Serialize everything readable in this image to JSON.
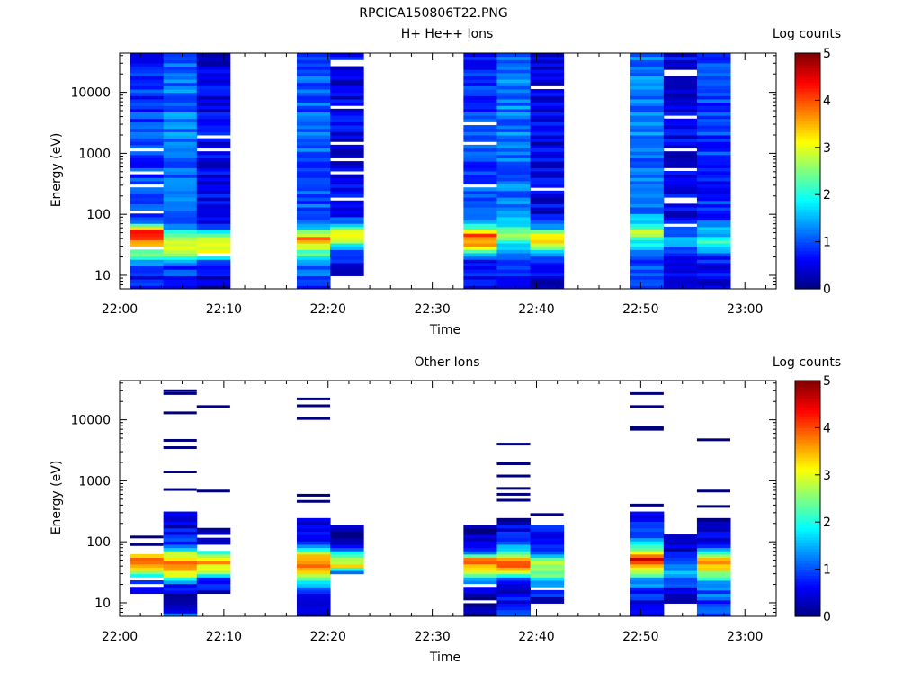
{
  "file_title": "RPCICA150806T22.PNG",
  "colors": {
    "colormap": [
      "#00007f",
      "#0000ff",
      "#007fff",
      "#00ffff",
      "#7fff7f",
      "#ffff00",
      "#ff7f00",
      "#ff0000",
      "#7f0000"
    ],
    "axis": "#000000",
    "background": "#ffffff"
  },
  "chart_data": [
    {
      "type": "heatmap",
      "title": "H+ He++ Ions",
      "xlabel": "Time",
      "ylabel": "Energy (eV)",
      "colorbar_label": "Log counts",
      "colorbar_range": [
        0,
        5
      ],
      "colorbar_ticks": [
        "0",
        "1",
        "2",
        "3",
        "4",
        "5"
      ],
      "x_range_min": [
        0,
        63
      ],
      "y_range_eV": [
        6,
        44000
      ],
      "y_scale": "log",
      "x_ticks": [
        {
          "min": 0,
          "label": "22:00"
        },
        {
          "min": 10,
          "label": "22:10"
        },
        {
          "min": 20,
          "label": "22:20"
        },
        {
          "min": 30,
          "label": "22:30"
        },
        {
          "min": 40,
          "label": "22:40"
        },
        {
          "min": 50,
          "label": "22:50"
        },
        {
          "min": 60,
          "label": "23:00"
        }
      ],
      "y_ticks": [
        {
          "v": 10,
          "label": "10"
        },
        {
          "v": 100,
          "label": "100"
        },
        {
          "v": 1000,
          "label": "1000"
        },
        {
          "v": 10000,
          "label": "10000"
        }
      ],
      "columns": [
        {
          "t0": 1.0,
          "t1": 4.2,
          "emin": 6,
          "emax": 44000,
          "profile": [
            [
              6,
              1.0
            ],
            [
              12,
              0.5
            ],
            [
              25,
              2.5
            ],
            [
              40,
              4.0
            ],
            [
              55,
              4.0
            ],
            [
              80,
              1.0
            ],
            [
              44000,
              0.8
            ]
          ],
          "gaps": [
            28,
            115,
            300,
            500,
            1200
          ]
        },
        {
          "t0": 4.2,
          "t1": 7.4,
          "emin": 6,
          "emax": 44000,
          "profile": [
            [
              6,
              0.8
            ],
            [
              15,
              0.9
            ],
            [
              25,
              2.8
            ],
            [
              40,
              2.8
            ],
            [
              60,
              1.2
            ],
            [
              44000,
              1.2
            ]
          ],
          "gaps": []
        },
        {
          "t0": 7.4,
          "t1": 10.6,
          "emin": 6,
          "emax": 44000,
          "profile": [
            [
              6,
              0.2
            ],
            [
              15,
              0.6
            ],
            [
              25,
              3.0
            ],
            [
              40,
              3.3
            ],
            [
              60,
              0.6
            ],
            [
              44000,
              0.5
            ]
          ],
          "gaps": [
            22,
            1100,
            1800
          ]
        },
        {
          "t0": 17.0,
          "t1": 20.2,
          "emin": 6,
          "emax": 44000,
          "profile": [
            [
              6,
              0.8
            ],
            [
              15,
              1.2
            ],
            [
              25,
              2.5
            ],
            [
              40,
              3.8
            ],
            [
              55,
              2.0
            ],
            [
              90,
              1.0
            ],
            [
              44000,
              1.1
            ]
          ],
          "gaps": []
        },
        {
          "t0": 20.2,
          "t1": 23.4,
          "emin": 10,
          "emax": 40000,
          "profile": [
            [
              10,
              0.4
            ],
            [
              25,
              0.8
            ],
            [
              35,
              2.5
            ],
            [
              45,
              3.5
            ],
            [
              60,
              2.0
            ],
            [
              100,
              0.5
            ],
            [
              40000,
              0.5
            ]
          ],
          "gaps": [
            180,
            500,
            800,
            1500,
            6000,
            30000
          ]
        },
        {
          "t0": 33.0,
          "t1": 36.2,
          "emin": 6,
          "emax": 44000,
          "profile": [
            [
              6,
              0.5
            ],
            [
              20,
              0.8
            ],
            [
              30,
              3.5
            ],
            [
              45,
              4.0
            ],
            [
              60,
              2.0
            ],
            [
              100,
              1.0
            ],
            [
              44000,
              0.8
            ]
          ],
          "gaps": [
            300,
            1400,
            3000
          ]
        },
        {
          "t0": 36.2,
          "t1": 39.4,
          "emin": 6,
          "emax": 44000,
          "profile": [
            [
              6,
              0.5
            ],
            [
              20,
              0.9
            ],
            [
              30,
              1.5
            ],
            [
              45,
              2.5
            ],
            [
              60,
              2.0
            ],
            [
              100,
              1.2
            ],
            [
              44000,
              1.2
            ]
          ],
          "gaps": []
        },
        {
          "t0": 39.4,
          "t1": 42.6,
          "emin": 6,
          "emax": 44000,
          "profile": [
            [
              6,
              0.3
            ],
            [
              20,
              0.8
            ],
            [
              30,
              3.0
            ],
            [
              45,
              3.2
            ],
            [
              60,
              1.5
            ],
            [
              100,
              0.5
            ],
            [
              44000,
              0.5
            ]
          ],
          "gaps": [
            270,
            11500
          ]
        },
        {
          "t0": 49.0,
          "t1": 52.2,
          "emin": 6,
          "emax": 44000,
          "profile": [
            [
              6,
              0.8
            ],
            [
              20,
              1.0
            ],
            [
              35,
              1.8
            ],
            [
              50,
              3.0
            ],
            [
              70,
              1.5
            ],
            [
              120,
              1.2
            ],
            [
              44000,
              1.2
            ]
          ],
          "gaps": []
        },
        {
          "t0": 52.2,
          "t1": 55.4,
          "emin": 6,
          "emax": 44000,
          "profile": [
            [
              6,
              0.4
            ],
            [
              20,
              0.6
            ],
            [
              35,
              1.5
            ],
            [
              50,
              1.0
            ],
            [
              100,
              0.5
            ],
            [
              44000,
              0.5
            ]
          ],
          "gaps": [
            70,
            170,
            550,
            1200,
            3800,
            20000,
            23000
          ]
        },
        {
          "t0": 55.4,
          "t1": 58.6,
          "emin": 6,
          "emax": 44000,
          "profile": [
            [
              6,
              0.5
            ],
            [
              20,
              0.8
            ],
            [
              35,
              2.0
            ],
            [
              50,
              1.5
            ],
            [
              100,
              0.8
            ],
            [
              44000,
              1.0
            ]
          ],
          "gaps": []
        }
      ]
    },
    {
      "type": "heatmap",
      "title": "Other Ions",
      "xlabel": "Time",
      "ylabel": "Energy (eV)",
      "colorbar_label": "Log counts",
      "colorbar_range": [
        0,
        5
      ],
      "colorbar_ticks": [
        "0",
        "1",
        "2",
        "3",
        "4",
        "5"
      ],
      "x_range_min": [
        0,
        63
      ],
      "y_range_eV": [
        6,
        44000
      ],
      "y_scale": "log",
      "x_ticks": [
        {
          "min": 0,
          "label": "22:00"
        },
        {
          "min": 10,
          "label": "22:10"
        },
        {
          "min": 20,
          "label": "22:20"
        },
        {
          "min": 30,
          "label": "22:30"
        },
        {
          "min": 40,
          "label": "22:40"
        },
        {
          "min": 50,
          "label": "22:50"
        },
        {
          "min": 60,
          "label": "23:00"
        }
      ],
      "y_ticks": [
        {
          "v": 10,
          "label": "10"
        },
        {
          "v": 100,
          "label": "100"
        },
        {
          "v": 1000,
          "label": "1000"
        },
        {
          "v": 10000,
          "label": "10000"
        }
      ],
      "columns": [
        {
          "t0": 1.0,
          "t1": 4.2,
          "emin": 15,
          "emax": 60,
          "profile": [
            [
              15,
              0.3
            ],
            [
              25,
              1.5
            ],
            [
              35,
              3.0
            ],
            [
              45,
              4.0
            ],
            [
              60,
              3.5
            ]
          ],
          "gaps": [
            20,
            24
          ],
          "lines": [
            90,
            120
          ]
        },
        {
          "t0": 4.2,
          "t1": 7.4,
          "emin": 6,
          "emax": 280,
          "profile": [
            [
              6,
              1.0
            ],
            [
              12,
              0.3
            ],
            [
              20,
              0.8
            ],
            [
              30,
              3.0
            ],
            [
              45,
              4.0
            ],
            [
              60,
              3.0
            ],
            [
              100,
              0.8
            ],
            [
              280,
              0.3
            ]
          ],
          "gaps": [],
          "lines": [
            720,
            1400,
            3500,
            4600,
            13000,
            27000,
            30000
          ]
        },
        {
          "t0": 7.4,
          "t1": 10.6,
          "emin": 15,
          "emax": 160,
          "profile": [
            [
              15,
              0.5
            ],
            [
              25,
              1.0
            ],
            [
              30,
              2.5
            ],
            [
              45,
              3.5
            ],
            [
              60,
              2.5
            ],
            [
              100,
              0.5
            ],
            [
              160,
              0.3
            ]
          ],
          "gaps": [
            80,
            120
          ],
          "lines": [
            680,
            16500
          ]
        },
        {
          "t0": 17.0,
          "t1": 20.2,
          "emin": 6,
          "emax": 230,
          "profile": [
            [
              6,
              0.5
            ],
            [
              15,
              0.8
            ],
            [
              25,
              2.0
            ],
            [
              35,
              3.5
            ],
            [
              50,
              4.0
            ],
            [
              70,
              2.5
            ],
            [
              100,
              0.8
            ],
            [
              230,
              0.3
            ]
          ],
          "gaps": [],
          "lines": [
            460,
            580,
            10500,
            17000,
            22000
          ]
        },
        {
          "t0": 20.2,
          "t1": 23.4,
          "emin": 30,
          "emax": 170,
          "profile": [
            [
              30,
              1.0
            ],
            [
              40,
              3.0
            ],
            [
              55,
              3.0
            ],
            [
              70,
              1.5
            ],
            [
              90,
              0.2
            ],
            [
              170,
              0.2
            ]
          ],
          "gaps": [],
          "lines": []
        },
        {
          "t0": 33.0,
          "t1": 36.2,
          "emin": 6,
          "emax": 170,
          "profile": [
            [
              6,
              0.2
            ],
            [
              12,
              0.2
            ],
            [
              25,
              1.5
            ],
            [
              35,
              3.5
            ],
            [
              50,
              3.8
            ],
            [
              70,
              1.0
            ],
            [
              120,
              0.2
            ],
            [
              170,
              0.2
            ]
          ],
          "gaps": [
            10,
            20
          ],
          "lines": []
        },
        {
          "t0": 36.2,
          "t1": 39.4,
          "emin": 6,
          "emax": 230,
          "profile": [
            [
              6,
              1.3
            ],
            [
              15,
              0.3
            ],
            [
              25,
              0.8
            ],
            [
              30,
              3.0
            ],
            [
              45,
              4.0
            ],
            [
              60,
              2.5
            ],
            [
              100,
              0.8
            ],
            [
              230,
              0.3
            ]
          ],
          "gaps": [],
          "lines": [
            480,
            600,
            750,
            1200,
            1900,
            4000
          ]
        },
        {
          "t0": 39.4,
          "t1": 42.6,
          "emin": 10,
          "emax": 190,
          "profile": [
            [
              10,
              0.3
            ],
            [
              20,
              1.2
            ],
            [
              30,
              2.5
            ],
            [
              45,
              3.0
            ],
            [
              60,
              1.2
            ],
            [
              100,
              0.3
            ],
            [
              190,
              0.8
            ]
          ],
          "gaps": [
            17
          ],
          "lines": [
            280
          ]
        },
        {
          "t0": 49.0,
          "t1": 52.2,
          "emin": 6,
          "emax": 300,
          "profile": [
            [
              6,
              0.5
            ],
            [
              15,
              0.8
            ],
            [
              25,
              1.5
            ],
            [
              35,
              3.0
            ],
            [
              50,
              4.5
            ],
            [
              60,
              4.0
            ],
            [
              80,
              2.0
            ],
            [
              120,
              1.0
            ],
            [
              300,
              0.4
            ]
          ],
          "gaps": [],
          "lines": [
            400,
            7000,
            7500,
            16500,
            27000
          ]
        },
        {
          "t0": 52.2,
          "t1": 55.4,
          "emin": 10,
          "emax": 125,
          "profile": [
            [
              10,
              0.2
            ],
            [
              18,
              0.8
            ],
            [
              30,
              1.5
            ],
            [
              45,
              1.2
            ],
            [
              70,
              0.4
            ],
            [
              125,
              0.3
            ]
          ],
          "gaps": [],
          "lines": []
        },
        {
          "t0": 55.4,
          "t1": 58.6,
          "emin": 6,
          "emax": 240,
          "profile": [
            [
              6,
              0.8
            ],
            [
              20,
              1.2
            ],
            [
              35,
              3.0
            ],
            [
              50,
              3.5
            ],
            [
              70,
              1.5
            ],
            [
              120,
              0.4
            ],
            [
              240,
              0.3
            ]
          ],
          "gaps": [],
          "lines": [
            380,
            680,
            4700
          ]
        }
      ]
    }
  ]
}
